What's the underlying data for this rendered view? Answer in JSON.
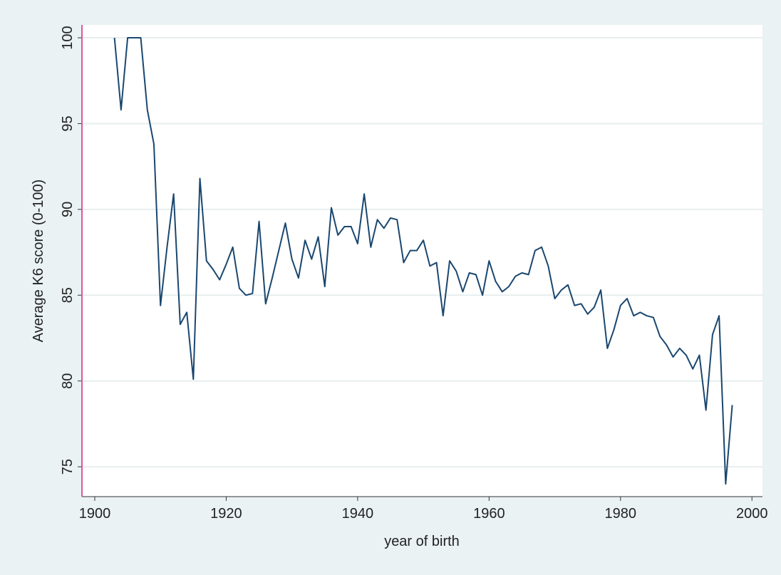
{
  "chart_data": {
    "type": "line",
    "xlabel": "year of birth",
    "ylabel": "Average K6 score (0-100)",
    "x": [
      1903,
      1904,
      1905,
      1906,
      1907,
      1908,
      1909,
      1910,
      1911,
      1912,
      1913,
      1914,
      1915,
      1916,
      1917,
      1918,
      1919,
      1920,
      1921,
      1922,
      1923,
      1924,
      1925,
      1926,
      1927,
      1928,
      1929,
      1930,
      1931,
      1932,
      1933,
      1934,
      1935,
      1936,
      1937,
      1938,
      1939,
      1940,
      1941,
      1942,
      1943,
      1944,
      1945,
      1946,
      1947,
      1948,
      1949,
      1950,
      1951,
      1952,
      1953,
      1954,
      1955,
      1956,
      1957,
      1958,
      1959,
      1960,
      1961,
      1962,
      1963,
      1964,
      1965,
      1966,
      1967,
      1968,
      1969,
      1970,
      1971,
      1972,
      1973,
      1974,
      1975,
      1976,
      1977,
      1978,
      1979,
      1980,
      1981,
      1982,
      1983,
      1984,
      1985,
      1986,
      1987,
      1988,
      1989,
      1990,
      1991,
      1992,
      1993,
      1994,
      1995,
      1996,
      1997
    ],
    "series": [
      {
        "color": "#1a476f",
        "values": [
          100,
          95.8,
          100,
          100,
          100,
          95.8,
          93.8,
          84.4,
          87.8,
          90.9,
          83.3,
          84.0,
          80.1,
          91.8,
          87.0,
          86.5,
          85.9,
          86.8,
          87.8,
          85.4,
          85.0,
          85.1,
          89.3,
          84.5,
          86.0,
          87.6,
          89.2,
          87.1,
          86.0,
          88.2,
          87.1,
          88.4,
          85.5,
          90.1,
          88.5,
          89.0,
          89.0,
          88.0,
          90.9,
          87.8,
          89.4,
          88.9,
          89.5,
          89.4,
          86.9,
          87.6,
          87.6,
          88.2,
          86.7,
          86.9,
          83.8,
          87.0,
          86.4,
          85.2,
          86.3,
          86.2,
          85.0,
          87.0,
          85.8,
          85.2,
          85.5,
          86.1,
          86.3,
          86.2,
          87.6,
          87.8,
          86.7,
          84.8,
          85.3,
          85.6,
          84.4,
          84.5,
          83.9,
          84.3,
          85.3,
          81.9,
          83.0,
          84.4,
          84.8,
          83.8,
          84.0,
          83.8,
          83.7,
          82.6,
          82.1,
          81.4,
          81.9,
          81.5,
          80.7,
          81.5,
          78.3,
          82.7,
          83.8,
          74.0,
          78.6
        ]
      }
    ],
    "xlim": [
      1898.05,
      2001.6
    ],
    "xticks": [
      1900,
      1920,
      1940,
      1960,
      1980,
      2000
    ],
    "ylim": [
      73.26,
      100.75
    ],
    "yticks": [
      75,
      80,
      85,
      90,
      95,
      100
    ],
    "grid": true
  }
}
